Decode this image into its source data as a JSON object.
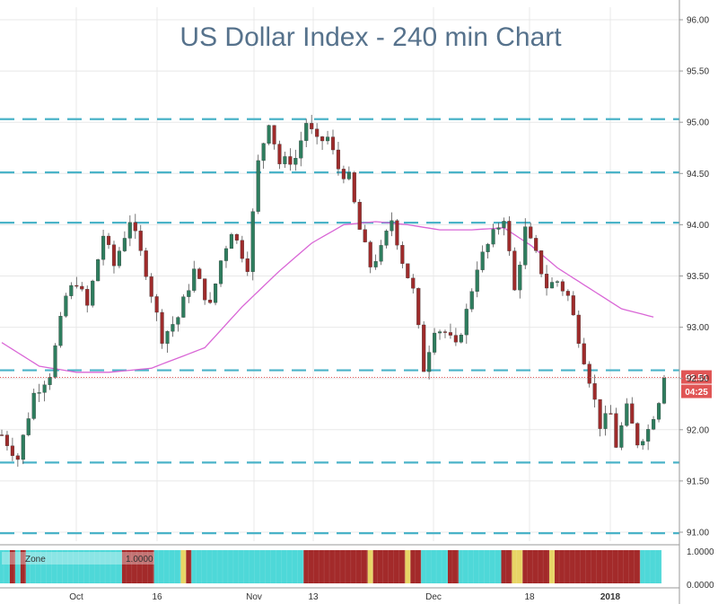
{
  "chart_data": {
    "type": "candlestick",
    "title": "US Dollar Index - 240 min Chart",
    "y_ticks": [
      "96.00",
      "95.50",
      "95.00",
      "94.50",
      "94.00",
      "93.50",
      "93.00",
      "92.50",
      "92.00",
      "91.50",
      "91.00"
    ],
    "ylim": [
      90.9,
      96.1
    ],
    "x_ticks": [
      "Oct",
      "16",
      "Nov",
      "13",
      "Dec",
      "18",
      "2018"
    ],
    "bold_x_tick": "2018",
    "grid": true,
    "last_price_label": "92.51",
    "countdown_label": "04:25",
    "last_price": 92.51,
    "horizontal_levels": [
      95.03,
      94.51,
      94.02,
      92.58,
      91.68,
      90.99
    ],
    "price_path_waypoints": [
      [
        0,
        91.95
      ],
      [
        3,
        91.72
      ],
      [
        6,
        92.35
      ],
      [
        9,
        92.55
      ],
      [
        12,
        93.3
      ],
      [
        14,
        93.45
      ],
      [
        16,
        93.2
      ],
      [
        19,
        93.9
      ],
      [
        21,
        93.6
      ],
      [
        24,
        94.05
      ],
      [
        27,
        93.55
      ],
      [
        30,
        92.9
      ],
      [
        33,
        93.1
      ],
      [
        36,
        93.55
      ],
      [
        39,
        93.2
      ],
      [
        41,
        93.65
      ],
      [
        43,
        93.95
      ],
      [
        46,
        93.6
      ],
      [
        48,
        94.6
      ],
      [
        50,
        95.02
      ],
      [
        52,
        94.6
      ],
      [
        55,
        94.65
      ],
      [
        57,
        95.0
      ],
      [
        59,
        94.8
      ],
      [
        61,
        94.85
      ],
      [
        63,
        94.55
      ],
      [
        65,
        94.45
      ],
      [
        67,
        93.95
      ],
      [
        69,
        93.6
      ],
      [
        71,
        93.75
      ],
      [
        73,
        94.05
      ],
      [
        75,
        93.65
      ],
      [
        77,
        93.35
      ],
      [
        79,
        92.6
      ],
      [
        81,
        93.0
      ],
      [
        83,
        92.95
      ],
      [
        85,
        92.8
      ],
      [
        87,
        93.15
      ],
      [
        89,
        93.6
      ],
      [
        92,
        93.9
      ],
      [
        94,
        94.08
      ],
      [
        96,
        93.35
      ],
      [
        98,
        93.95
      ],
      [
        100,
        93.7
      ],
      [
        102,
        93.4
      ],
      [
        104,
        93.45
      ],
      [
        106,
        93.3
      ],
      [
        108,
        92.9
      ],
      [
        110,
        92.5
      ],
      [
        112,
        92.05
      ],
      [
        114,
        92.15
      ],
      [
        115,
        91.85
      ],
      [
        117,
        92.2
      ],
      [
        119,
        91.88
      ],
      [
        121,
        92.0
      ],
      [
        123,
        92.3
      ],
      [
        124,
        92.55
      ]
    ],
    "moving_average_waypoints": [
      [
        0,
        92.85
      ],
      [
        7,
        92.62
      ],
      [
        14,
        92.56
      ],
      [
        20,
        92.56
      ],
      [
        28,
        92.6
      ],
      [
        38,
        92.8
      ],
      [
        45,
        93.2
      ],
      [
        52,
        93.55
      ],
      [
        58,
        93.82
      ],
      [
        64,
        94.0
      ],
      [
        70,
        94.03
      ],
      [
        76,
        94.0
      ],
      [
        82,
        93.95
      ],
      [
        88,
        93.95
      ],
      [
        94,
        93.97
      ],
      [
        99,
        93.8
      ],
      [
        104,
        93.58
      ],
      [
        110,
        93.38
      ],
      [
        116,
        93.18
      ],
      [
        122,
        93.1
      ]
    ],
    "indicator": {
      "label": "Zone",
      "value_label": "1.0000",
      "y_ticks": [
        "1.0000",
        "0.0000"
      ],
      "zone_segments": [
        {
          "from": 0,
          "to": 2,
          "zone": "cyan"
        },
        {
          "from": 2,
          "to": 3,
          "zone": "red"
        },
        {
          "from": 3,
          "to": 4,
          "zone": "cyan"
        },
        {
          "from": 4,
          "to": 5,
          "zone": "red"
        },
        {
          "from": 5,
          "to": 23,
          "zone": "cyan"
        },
        {
          "from": 23,
          "to": 29,
          "zone": "red"
        },
        {
          "from": 29,
          "to": 34,
          "zone": "cyan"
        },
        {
          "from": 34,
          "to": 35,
          "zone": "yellow"
        },
        {
          "from": 35,
          "to": 36,
          "zone": "red"
        },
        {
          "from": 36,
          "to": 57,
          "zone": "cyan"
        },
        {
          "from": 57,
          "to": 69,
          "zone": "red"
        },
        {
          "from": 69,
          "to": 70,
          "zone": "yellow"
        },
        {
          "from": 70,
          "to": 76,
          "zone": "red"
        },
        {
          "from": 76,
          "to": 77,
          "zone": "yellow"
        },
        {
          "from": 77,
          "to": 79,
          "zone": "red"
        },
        {
          "from": 79,
          "to": 84,
          "zone": "cyan"
        },
        {
          "from": 84,
          "to": 86,
          "zone": "red"
        },
        {
          "from": 86,
          "to": 94,
          "zone": "cyan"
        },
        {
          "from": 94,
          "to": 96,
          "zone": "red"
        },
        {
          "from": 96,
          "to": 98,
          "zone": "yellow"
        },
        {
          "from": 98,
          "to": 103,
          "zone": "red"
        },
        {
          "from": 103,
          "to": 104,
          "zone": "yellow"
        },
        {
          "from": 104,
          "to": 120,
          "zone": "red"
        },
        {
          "from": 120,
          "to": 124,
          "zone": "cyan"
        }
      ]
    }
  },
  "colors": {
    "up_candle": "#2e7d5e",
    "down_candle": "#9e2b2b",
    "wick": "#555555",
    "level_line": "#4ab3c8",
    "moving_average": "#d966d6",
    "price_line": "#e05555",
    "price_badge": "#e05555",
    "grid": "#e8e8e8",
    "title": "#56728c",
    "zone_cyan": "#4ed8d8",
    "zone_red": "#a32a2a",
    "zone_yellow": "#e8d566"
  }
}
